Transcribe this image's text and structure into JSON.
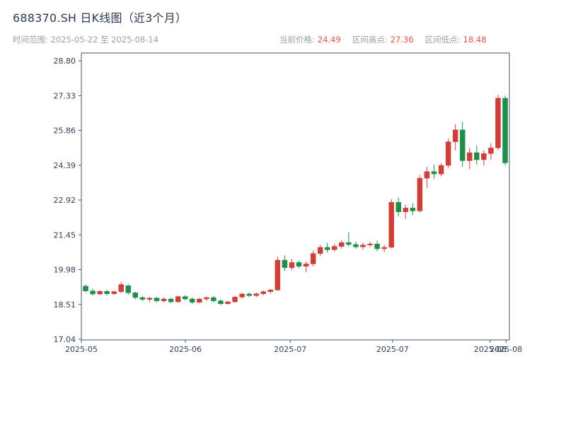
{
  "header": {
    "title": "688370.SH 日K线图（近3个月）",
    "range_text": "时间范围: 2025-05-22 至 2025-08-14",
    "stats": {
      "current_label": "当前价格:",
      "current_value": "24.49",
      "high_label": "区间高点:",
      "high_value": "27.36",
      "low_label": "区间低点:",
      "low_value": "18.48"
    }
  },
  "chart_data": {
    "type": "candlestick",
    "title": "688370.SH 日K线图（近3个月）",
    "date_start": "2025-05-22",
    "date_end": "2025-08-14",
    "current_price": 24.49,
    "range_high": 27.36,
    "range_low": 18.48,
    "ylim": [
      17.04,
      28.8
    ],
    "y_ticks": [
      17.04,
      18.51,
      19.98,
      21.45,
      22.92,
      24.39,
      25.86,
      27.33,
      28.8
    ],
    "x_ticks": [
      {
        "pos": 0.0,
        "label": "2025-05"
      },
      {
        "pos": 0.243,
        "label": "2025-06"
      },
      {
        "pos": 0.488,
        "label": "2025-07"
      },
      {
        "pos": 0.727,
        "label": "2025-07"
      },
      {
        "pos": 0.955,
        "label": "2025-08"
      },
      {
        "pos": 0.992,
        "label": "2025-08"
      }
    ],
    "grid": false,
    "legend": "none",
    "colors": {
      "up": "#cf3f38",
      "down": "#1f8e4d"
    },
    "columns": [
      "date",
      "open",
      "high",
      "low",
      "close"
    ],
    "candles": [
      [
        "2025-05-22",
        19.28,
        19.35,
        19.02,
        19.08
      ],
      [
        "2025-05-23",
        19.08,
        19.18,
        18.88,
        18.95
      ],
      [
        "2025-05-26",
        18.95,
        19.12,
        18.9,
        19.06
      ],
      [
        "2025-05-27",
        19.06,
        19.12,
        18.88,
        18.96
      ],
      [
        "2025-05-28",
        18.96,
        19.1,
        18.92,
        19.05
      ],
      [
        "2025-05-29",
        19.05,
        19.46,
        18.98,
        19.35
      ],
      [
        "2025-05-30",
        19.3,
        19.36,
        18.92,
        19.0
      ],
      [
        "2025-06-03",
        19.0,
        19.04,
        18.72,
        18.8
      ],
      [
        "2025-06-04",
        18.8,
        18.86,
        18.65,
        18.72
      ],
      [
        "2025-06-05",
        18.72,
        18.82,
        18.62,
        18.78
      ],
      [
        "2025-06-06",
        18.78,
        18.82,
        18.6,
        18.66
      ],
      [
        "2025-06-09",
        18.66,
        18.8,
        18.6,
        18.74
      ],
      [
        "2025-06-10",
        18.74,
        18.78,
        18.56,
        18.62
      ],
      [
        "2025-06-11",
        18.62,
        18.88,
        18.58,
        18.84
      ],
      [
        "2025-06-12",
        18.84,
        18.9,
        18.68,
        18.74
      ],
      [
        "2025-06-13",
        18.74,
        18.8,
        18.52,
        18.6
      ],
      [
        "2025-06-16",
        18.6,
        18.78,
        18.56,
        18.74
      ],
      [
        "2025-06-17",
        18.74,
        18.84,
        18.66,
        18.8
      ],
      [
        "2025-06-18",
        18.8,
        18.86,
        18.6,
        18.66
      ],
      [
        "2025-06-19",
        18.66,
        18.72,
        18.48,
        18.54
      ],
      [
        "2025-06-20",
        18.54,
        18.66,
        18.5,
        18.62
      ],
      [
        "2025-06-23",
        18.62,
        18.86,
        18.58,
        18.82
      ],
      [
        "2025-06-24",
        18.82,
        19.0,
        18.76,
        18.95
      ],
      [
        "2025-06-25",
        18.95,
        19.02,
        18.82,
        18.88
      ],
      [
        "2025-06-26",
        18.88,
        19.0,
        18.82,
        18.96
      ],
      [
        "2025-06-27",
        18.96,
        19.1,
        18.9,
        19.05
      ],
      [
        "2025-06-30",
        19.05,
        19.16,
        18.96,
        19.12
      ],
      [
        "2025-07-01",
        19.12,
        20.52,
        19.08,
        20.38
      ],
      [
        "2025-07-02",
        20.38,
        20.58,
        19.92,
        20.06
      ],
      [
        "2025-07-03",
        20.06,
        20.42,
        19.96,
        20.28
      ],
      [
        "2025-07-04",
        20.28,
        20.36,
        20.04,
        20.12
      ],
      [
        "2025-07-07",
        20.12,
        20.32,
        19.86,
        20.22
      ],
      [
        "2025-07-08",
        20.22,
        20.78,
        20.12,
        20.66
      ],
      [
        "2025-07-09",
        20.66,
        21.02,
        20.56,
        20.92
      ],
      [
        "2025-07-10",
        20.92,
        21.12,
        20.7,
        20.82
      ],
      [
        "2025-07-11",
        20.82,
        21.06,
        20.74,
        20.96
      ],
      [
        "2025-07-14",
        20.96,
        21.22,
        20.86,
        21.12
      ],
      [
        "2025-07-15",
        21.12,
        21.56,
        20.96,
        21.04
      ],
      [
        "2025-07-16",
        21.04,
        21.16,
        20.86,
        20.94
      ],
      [
        "2025-07-17",
        20.94,
        21.12,
        20.82,
        21.02
      ],
      [
        "2025-07-18",
        21.02,
        21.16,
        20.92,
        21.06
      ],
      [
        "2025-07-21",
        21.06,
        21.2,
        20.76,
        20.86
      ],
      [
        "2025-07-22",
        20.86,
        21.02,
        20.72,
        20.92
      ],
      [
        "2025-07-23",
        20.92,
        22.96,
        20.88,
        22.82
      ],
      [
        "2025-07-24",
        22.82,
        23.02,
        22.22,
        22.42
      ],
      [
        "2025-07-25",
        22.42,
        22.72,
        22.12,
        22.58
      ],
      [
        "2025-07-28",
        22.58,
        22.78,
        22.28,
        22.46
      ],
      [
        "2025-07-29",
        22.46,
        23.98,
        22.4,
        23.84
      ],
      [
        "2025-07-30",
        23.84,
        24.32,
        23.44,
        24.12
      ],
      [
        "2025-07-31",
        24.12,
        24.42,
        23.82,
        24.02
      ],
      [
        "2025-08-01",
        24.02,
        24.48,
        23.92,
        24.38
      ],
      [
        "2025-08-04",
        24.38,
        25.52,
        24.28,
        25.38
      ],
      [
        "2025-08-05",
        25.38,
        26.12,
        25.02,
        25.88
      ],
      [
        "2025-08-06",
        25.88,
        26.22,
        24.32,
        24.58
      ],
      [
        "2025-08-07",
        24.58,
        25.12,
        24.22,
        24.92
      ],
      [
        "2025-08-08",
        24.92,
        25.22,
        24.42,
        24.62
      ],
      [
        "2025-08-11",
        24.62,
        25.02,
        24.38,
        24.88
      ],
      [
        "2025-08-12",
        24.88,
        25.32,
        24.62,
        25.12
      ],
      [
        "2025-08-13",
        25.12,
        27.36,
        25.02,
        27.22
      ],
      [
        "2025-08-14",
        27.22,
        27.33,
        24.38,
        24.49
      ]
    ]
  }
}
